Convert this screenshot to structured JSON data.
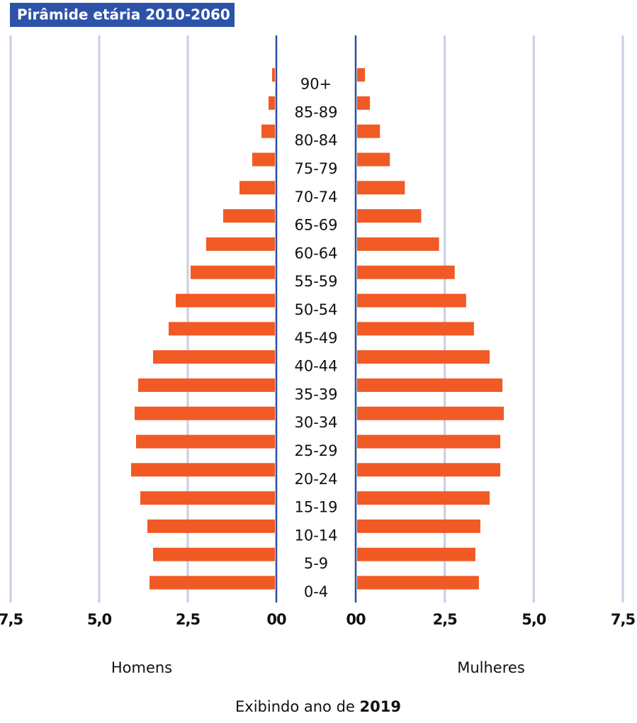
{
  "chart_data": {
    "type": "pyramid",
    "title": "Pirâmide etária 2010-2060",
    "categories": [
      "0-4",
      "5-9",
      "10-14",
      "15-19",
      "20-24",
      "25-29",
      "30-34",
      "35-39",
      "40-44",
      "45-49",
      "50-54",
      "55-59",
      "60-64",
      "65-69",
      "70-74",
      "75-79",
      "80-84",
      "85-89",
      "90+"
    ],
    "series": [
      {
        "name": "Homens",
        "color": "#f15a24",
        "values": [
          3.58,
          3.48,
          3.64,
          3.84,
          4.1,
          3.96,
          4.0,
          3.9,
          3.48,
          3.04,
          2.84,
          2.42,
          1.98,
          1.5,
          1.04,
          0.68,
          0.42,
          0.22,
          0.12
        ]
      },
      {
        "name": "Mulheres",
        "color": "#f15a24",
        "values": [
          3.46,
          3.36,
          3.5,
          3.76,
          4.06,
          4.06,
          4.16,
          4.12,
          3.76,
          3.32,
          3.1,
          2.78,
          2.34,
          1.84,
          1.38,
          0.96,
          0.68,
          0.4,
          0.26
        ]
      }
    ],
    "xlim": [
      0,
      7.5
    ],
    "xticks": [
      {
        "value": 0,
        "label": "00"
      },
      {
        "value": 2.5,
        "label": "2,5"
      },
      {
        "value": 5,
        "label": "5,0"
      },
      {
        "value": 7.5,
        "label": "7,5"
      }
    ],
    "grid": true,
    "footer": {
      "text": "Exibindo ano de",
      "year": "2019"
    }
  }
}
